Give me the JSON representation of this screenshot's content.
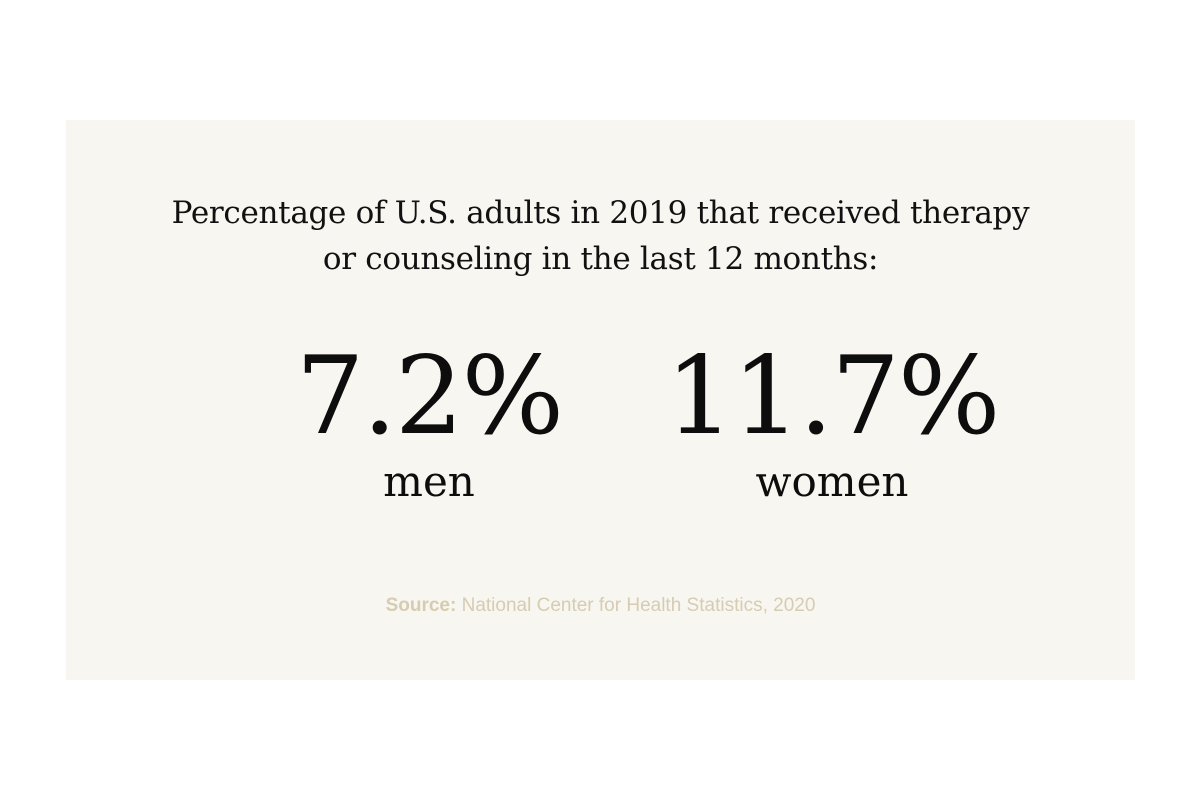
{
  "headline": {
    "line1": "Percentage of U.S. adults in 2019 that received therapy",
    "line2": "or counseling in the last 12 months:"
  },
  "stats": [
    {
      "value": "7.2%",
      "label": "men"
    },
    {
      "value": "11.7%",
      "label": "women"
    }
  ],
  "source": {
    "label": "Source:",
    "text": " National Center for Health Statistics, 2020"
  },
  "colors": {
    "card_background": "#f8f6f1",
    "text": "#111111",
    "source_text": "#d6ccb1"
  }
}
